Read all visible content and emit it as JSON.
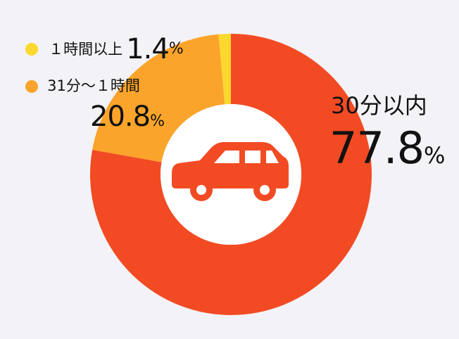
{
  "chart_data": {
    "type": "pie",
    "categories": [
      "30分以内",
      "31分〜１時間",
      "１時間以上"
    ],
    "values": [
      77.8,
      20.8,
      1.4
    ],
    "colors": [
      "#f24b24",
      "#fba42b",
      "#fdd82e"
    ],
    "labels": [
      {
        "name": "30分以内",
        "value": "77.8",
        "unit": "%"
      },
      {
        "name": "31分〜１時間",
        "value": "20.8",
        "unit": "%"
      },
      {
        "name": "１時間以上",
        "value": "1.4",
        "unit": "%"
      }
    ],
    "center_icon": "car-icon"
  }
}
